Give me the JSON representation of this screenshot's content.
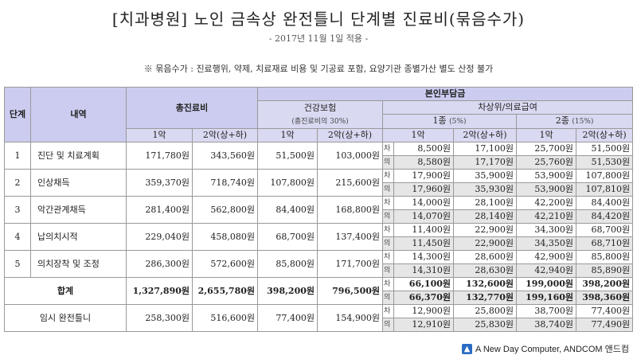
{
  "title": "[치과병원] 노인 금속상 완전틀니 단계별 진료비(묶음수가)",
  "date": "- 2017년 11월 1일 적용 -",
  "note": "※ 묶음수가 : 진료행위, 약제, 치료재료 비용 및 기공료 포함, 요양기관 종별가산 별도 산정 불가",
  "headers": {
    "stage": "단계",
    "detail": "내역",
    "total": "총진료비",
    "copay": "본인부담금",
    "insurance": "건강보험",
    "insurance_sub": "(총진료비의 30%)",
    "medical_aid": "차상위/의료급여",
    "type1": "1종",
    "type1_pct": "(5%)",
    "type2": "2종",
    "type2_pct": "(15%)",
    "jaw1": "1악",
    "jaw2": "2악(상+하)"
  },
  "rows": [
    {
      "no": "1",
      "name": "진단 및 치료계획",
      "t1": "171,780원",
      "t2": "343,560원",
      "i1": "51,500원",
      "i2": "103,000원",
      "cha": {
        "label": "차",
        "a": "8,500원",
        "b": "17,100원",
        "c": "25,700원",
        "d": "51,500원"
      },
      "ui": {
        "label": "의",
        "a": "8,580원",
        "b": "17,170원",
        "c": "25,760원",
        "d": "51,530원"
      }
    },
    {
      "no": "2",
      "name": "인상채득",
      "t1": "359,370원",
      "t2": "718,740원",
      "i1": "107,800원",
      "i2": "215,600원",
      "cha": {
        "label": "차",
        "a": "17,900원",
        "b": "35,900원",
        "c": "53,900원",
        "d": "107,800원"
      },
      "ui": {
        "label": "의",
        "a": "17,960원",
        "b": "35,930원",
        "c": "53,900원",
        "d": "107,810원"
      }
    },
    {
      "no": "3",
      "name": "악간관계채득",
      "t1": "281,400원",
      "t2": "562,800원",
      "i1": "84,400원",
      "i2": "168,800원",
      "cha": {
        "label": "차",
        "a": "14,000원",
        "b": "28,100원",
        "c": "42,200원",
        "d": "84,400원"
      },
      "ui": {
        "label": "의",
        "a": "14,070원",
        "b": "28,140원",
        "c": "42,210원",
        "d": "84,420원"
      }
    },
    {
      "no": "4",
      "name": "납의치시적",
      "t1": "229,040원",
      "t2": "458,080원",
      "i1": "68,700원",
      "i2": "137,400원",
      "cha": {
        "label": "차",
        "a": "11,400원",
        "b": "22,900원",
        "c": "34,300원",
        "d": "68,700원"
      },
      "ui": {
        "label": "의",
        "a": "11,450원",
        "b": "22,900원",
        "c": "34,350원",
        "d": "68,710원"
      }
    },
    {
      "no": "5",
      "name": "의치장착 및 조정",
      "t1": "286,300원",
      "t2": "572,600원",
      "i1": "85,800원",
      "i2": "171,700원",
      "cha": {
        "label": "차",
        "a": "14,300원",
        "b": "28,600원",
        "c": "42,900원",
        "d": "85,800원"
      },
      "ui": {
        "label": "의",
        "a": "14,310원",
        "b": "28,630원",
        "c": "42,940원",
        "d": "85,890원"
      }
    }
  ],
  "total": {
    "label": "합계",
    "t1": "1,327,890원",
    "t2": "2,655,780원",
    "i1": "398,200원",
    "i2": "796,500원",
    "cha": {
      "label": "차",
      "a": "66,100원",
      "b": "132,600원",
      "c": "199,000원",
      "d": "398,200원"
    },
    "ui": {
      "label": "의",
      "a": "66,370원",
      "b": "132,770원",
      "c": "199,160원",
      "d": "398,360원"
    }
  },
  "temp": {
    "label": "임시 완전틀니",
    "t1": "258,300원",
    "t2": "516,600원",
    "i1": "77,400원",
    "i2": "154,900원",
    "cha": {
      "label": "차",
      "a": "12,900원",
      "b": "25,800원",
      "c": "38,700원",
      "d": "77,400원"
    },
    "ui": {
      "label": "의",
      "a": "12,910원",
      "b": "25,830원",
      "c": "38,740원",
      "d": "77,490원"
    }
  },
  "footer": "A New Day Computer, ANDCOM 앤드컴",
  "colors": {
    "header_bg": "#ccccf0",
    "shaded_bg": "#e6e6e6",
    "logo": "#2a6cc4"
  },
  "icons": {
    "footer_logo": "andcom-logo-icon"
  }
}
